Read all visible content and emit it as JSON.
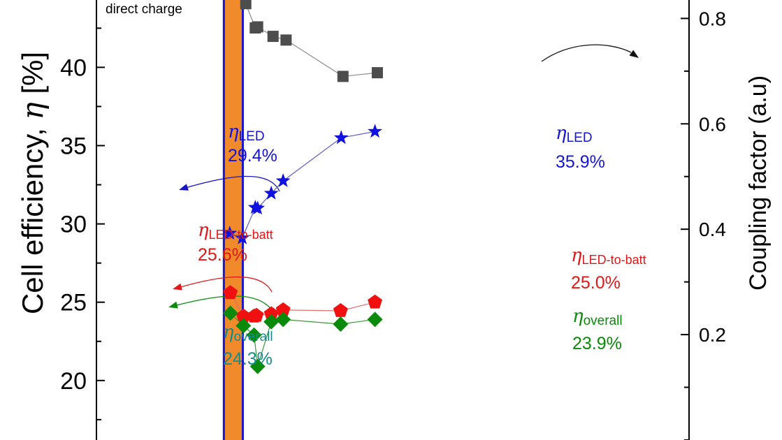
{
  "chart_data": {
    "type": "scatter",
    "title": "",
    "corner_label": "direct charge",
    "left_axis": {
      "label_main": "Cell efficiency, ",
      "label_symbol": "η",
      "label_unit": " [%]",
      "ticks": [
        20,
        25,
        30,
        35,
        40
      ],
      "tick_labels": [
        "20",
        "25",
        "30",
        "35",
        "40"
      ],
      "range": [
        16.2,
        44.3
      ]
    },
    "right_axis": {
      "label": "Coupling factor (a.u)",
      "ticks": [
        0.2,
        0.4,
        0.6,
        0.8
      ],
      "tick_labels": [
        "0.2",
        "0.4",
        "0.6",
        "0.8"
      ],
      "range": [
        0.0,
        0.835
      ]
    },
    "x_range": [
      0,
      1
    ],
    "shaded_band": {
      "x0": 0.215,
      "x1": 0.247,
      "color": "#f08a2a",
      "edge_color": "#1818c8"
    },
    "series": [
      {
        "key": "coupling",
        "axis": "right",
        "marker": "square",
        "color": "#4d4d4d",
        "line_color": "#8a8a8a",
        "x": [
          0.252,
          0.268,
          0.272,
          0.298,
          0.32,
          0.416,
          0.474
        ],
        "y": [
          0.828,
          0.782,
          0.784,
          0.766,
          0.759,
          0.69,
          0.697
        ]
      },
      {
        "key": "eta_led",
        "axis": "left",
        "marker": "star",
        "color": "#1010e0",
        "line_color": "#5a5ad0",
        "x": [
          0.225,
          0.246,
          0.268,
          0.272,
          0.295,
          0.315,
          0.413,
          0.47
        ],
        "y": [
          29.4,
          29.1,
          31.05,
          31.0,
          31.95,
          32.75,
          35.5,
          35.9
        ]
      },
      {
        "key": "eta_led_to_batt",
        "axis": "left",
        "marker": "pentagon",
        "color": "#f01010",
        "line_color": "#e07070",
        "x": [
          0.226,
          0.248,
          0.266,
          0.27,
          0.295,
          0.315,
          0.412,
          0.47
        ],
        "y": [
          25.6,
          24.1,
          24.1,
          24.15,
          24.25,
          24.5,
          24.45,
          25.0
        ]
      },
      {
        "key": "eta_overall",
        "axis": "left",
        "marker": "diamond",
        "color": "#0a8a0a",
        "line_color": "#3a9a3a",
        "x": [
          0.226,
          0.248,
          0.266,
          0.272,
          0.295,
          0.315,
          0.412,
          0.47
        ],
        "y": [
          24.3,
          23.5,
          22.9,
          20.9,
          23.75,
          23.9,
          23.6,
          23.9
        ]
      }
    ],
    "annotations": [
      {
        "key": "led_left",
        "symbol": "η",
        "subscript": "LED",
        "value": "29.4%",
        "color": "#1515d8"
      },
      {
        "key": "led_right",
        "symbol": "η",
        "subscript": "LED",
        "value": "35.9%",
        "color": "#1515d8"
      },
      {
        "key": "batt_left",
        "symbol": "η",
        "subscript": "LED-to-batt",
        "value": "25.6%",
        "color": "#e01818"
      },
      {
        "key": "batt_right",
        "symbol": "η",
        "subscript": "LED-to-batt",
        "value": "25.0%",
        "color": "#e01818"
      },
      {
        "key": "overall_left",
        "symbol": "η",
        "subscript": "overall",
        "value": "24.3%",
        "color": "#148c8c"
      },
      {
        "key": "overall_right",
        "symbol": "η",
        "subscript": "overall",
        "value": "23.9%",
        "color": "#0a8a0a"
      }
    ],
    "axis_pointer_arrows": [
      {
        "key": "led_to_left",
        "color": "#1515c8",
        "points_to": "left"
      },
      {
        "key": "batt_to_left",
        "color": "#e01818",
        "points_to": "left"
      },
      {
        "key": "overall_to_left",
        "color": "#0a8a0a",
        "points_to": "left"
      },
      {
        "key": "coupling_to_right",
        "color": "#111111",
        "points_to": "right"
      }
    ],
    "grid": false,
    "legend": "none"
  }
}
